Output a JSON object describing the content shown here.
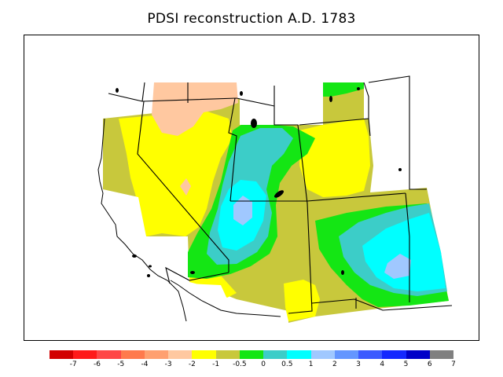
{
  "title": "PDSI reconstruction A.D. 1783",
  "legend": {
    "colors": [
      "#d20000",
      "#ff1a1a",
      "#ff4646",
      "#ff7a4d",
      "#ffa070",
      "#ffc8a0",
      "#ffff00",
      "#c8c83c",
      "#14e614",
      "#3ccdc8",
      "#00ffff",
      "#a0c8ff",
      "#6496ff",
      "#3c5aff",
      "#1428ff",
      "#0000c8",
      "#808080"
    ],
    "labels": [
      "-7",
      "-6",
      "-5",
      "-4",
      "-3",
      "-2",
      "-1",
      "-0.5",
      "0",
      "0.5",
      "1",
      "2",
      "3",
      "4",
      "5",
      "6",
      "7"
    ]
  }
}
